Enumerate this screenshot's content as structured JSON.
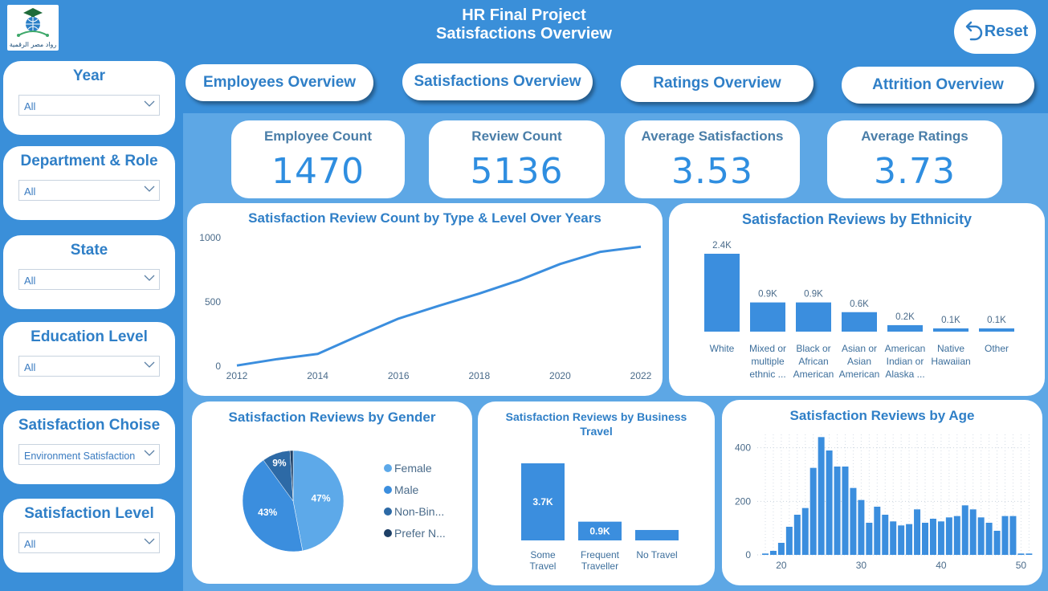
{
  "header": {
    "title_line1": "HR Final Project",
    "title_line2": "Satisfactions Overview",
    "reset_label": "Reset",
    "logo_text": "رواد مصر الرقمية"
  },
  "slicers": [
    {
      "label": "Year",
      "value": "All"
    },
    {
      "label": "Department & Role",
      "value": "All"
    },
    {
      "label": "State",
      "value": "All"
    },
    {
      "label": "Education Level",
      "value": "All"
    },
    {
      "label": "Satisfaction Choise",
      "value": "Environment Satisfaction"
    },
    {
      "label": "Satisfaction Level",
      "value": "All"
    }
  ],
  "nav": {
    "employees": "Employees Overview",
    "satisfactions": "Satisfactions Overview",
    "ratings": "Ratings Overview",
    "attrition": "Attrition Overview"
  },
  "kpis": [
    {
      "label": "Employee Count",
      "value": "1470"
    },
    {
      "label": "Review Count",
      "value": "5136"
    },
    {
      "label": "Average Satisfactions",
      "value": "3.53"
    },
    {
      "label": "Average Ratings",
      "value": "3.73"
    }
  ],
  "colors": {
    "primary": "#3a8fd9",
    "accent": "#2f7fc7",
    "bar": "#3b8ede",
    "pie_female": "#5da9e9",
    "pie_male": "#3b8ede",
    "pie_nonbinary": "#2d6aa6",
    "pie_prefer": "#1d3f66"
  },
  "chart_data": [
    {
      "type": "line",
      "title": "Satisfaction Review Count by Type & Level Over Years",
      "x": [
        2012,
        2013,
        2014,
        2015,
        2016,
        2017,
        2018,
        2019,
        2020,
        2021,
        2022
      ],
      "y": [
        5,
        55,
        95,
        235,
        370,
        470,
        565,
        670,
        795,
        890,
        930
      ],
      "xticks": [
        "2012",
        "2014",
        "2016",
        "2018",
        "2020",
        "2022"
      ],
      "yticks": [
        "0",
        "500",
        "1000"
      ],
      "ylim": [
        0,
        1000
      ]
    },
    {
      "type": "bar",
      "title": "Satisfaction Reviews by Ethnicity",
      "categories": [
        [
          "White"
        ],
        [
          "Mixed or",
          "multiple",
          "ethnic ..."
        ],
        [
          "Black or",
          "African",
          "American"
        ],
        [
          "Asian or",
          "Asian",
          "American"
        ],
        [
          "American",
          "Indian or",
          "Alaska ..."
        ],
        [
          "Native",
          "Hawaiian"
        ],
        [
          "Other"
        ]
      ],
      "values": [
        2.4,
        0.9,
        0.9,
        0.6,
        0.2,
        0.1,
        0.1
      ],
      "labels": [
        "2.4K",
        "0.9K",
        "0.9K",
        "0.6K",
        "0.2K",
        "0.1K",
        "0.1K"
      ]
    },
    {
      "type": "pie",
      "title": "Satisfaction Reviews by Gender",
      "slices": [
        {
          "name": "Female",
          "value": 47,
          "label": "47%"
        },
        {
          "name": "Male",
          "value": 43,
          "label": "43%"
        },
        {
          "name": "Non-Bin...",
          "value": 9,
          "label": "9%"
        },
        {
          "name": "Prefer N...",
          "value": 1,
          "label": ""
        }
      ]
    },
    {
      "type": "bar",
      "title": "Satisfaction Reviews by Business Travel",
      "categories": [
        [
          "Some",
          "Travel"
        ],
        [
          "Frequent",
          "Traveller"
        ],
        [
          "No Travel"
        ]
      ],
      "values": [
        3.7,
        0.9,
        0.5
      ],
      "labels": [
        "3.7K",
        "0.9K",
        ""
      ]
    },
    {
      "type": "bar",
      "title": "Satisfaction Reviews by Age",
      "x": [
        18,
        19,
        20,
        21,
        22,
        23,
        24,
        25,
        26,
        27,
        28,
        29,
        30,
        31,
        32,
        33,
        34,
        35,
        36,
        37,
        38,
        39,
        40,
        41,
        42,
        43,
        44,
        45,
        46,
        47,
        48,
        49,
        50,
        51
      ],
      "values": [
        5,
        15,
        45,
        105,
        150,
        175,
        325,
        440,
        390,
        330,
        330,
        250,
        205,
        120,
        180,
        150,
        125,
        110,
        115,
        170,
        120,
        135,
        125,
        140,
        145,
        185,
        170,
        140,
        120,
        90,
        145,
        145,
        5,
        5
      ],
      "xticks": [
        "20",
        "30",
        "40",
        "50"
      ],
      "yticks": [
        "0",
        "200",
        "400"
      ],
      "ylim": [
        0,
        450
      ]
    }
  ]
}
